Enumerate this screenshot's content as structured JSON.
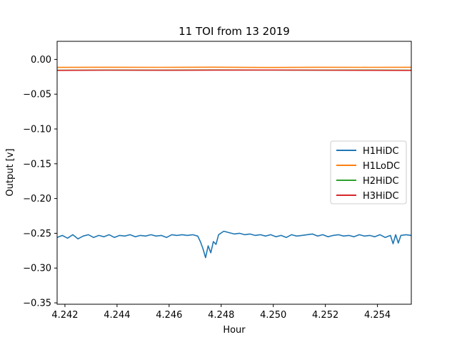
{
  "chart_data": {
    "type": "line",
    "title": "11 TOI from 13 2019",
    "xlabel": "Hour",
    "ylabel": "Output [v]",
    "xlim": [
      4.2417,
      4.2553
    ],
    "ylim": [
      -0.352,
      0.026
    ],
    "xticks": [
      4.242,
      4.244,
      4.246,
      4.248,
      4.25,
      4.252,
      4.254
    ],
    "xtick_labels": [
      "4.242",
      "4.244",
      "4.246",
      "4.248",
      "4.250",
      "4.252",
      "4.254"
    ],
    "yticks": [
      0.0,
      -0.05,
      -0.1,
      -0.15,
      -0.2,
      -0.25,
      -0.3,
      -0.35
    ],
    "ytick_labels": [
      "0.00",
      "−0.05",
      "−0.10",
      "−0.15",
      "−0.20",
      "−0.25",
      "−0.30",
      "−0.35"
    ],
    "grid": false,
    "legend_position": "center-right",
    "series": [
      {
        "name": "H1HiDC",
        "color": "#1f77b4",
        "x": [
          4.2417,
          4.2419,
          4.2421,
          4.2423,
          4.2425,
          4.2427,
          4.2429,
          4.2431,
          4.2433,
          4.2435,
          4.2437,
          4.2439,
          4.2441,
          4.2443,
          4.2445,
          4.2447,
          4.2449,
          4.2451,
          4.2453,
          4.2455,
          4.2457,
          4.2459,
          4.2461,
          4.2463,
          4.2465,
          4.2467,
          4.2469,
          4.2471,
          4.2472,
          4.2473,
          4.2474,
          4.2475,
          4.2476,
          4.2477,
          4.2478,
          4.2479,
          4.2481,
          4.2483,
          4.2485,
          4.2487,
          4.2489,
          4.2491,
          4.2493,
          4.2495,
          4.2497,
          4.2499,
          4.2501,
          4.2503,
          4.2505,
          4.2507,
          4.2509,
          4.2511,
          4.2513,
          4.2515,
          4.2517,
          4.2519,
          4.2521,
          4.2523,
          4.2525,
          4.2527,
          4.2529,
          4.2531,
          4.2533,
          4.2535,
          4.2537,
          4.2539,
          4.2541,
          4.2543,
          4.2545,
          4.2546,
          4.2547,
          4.2548,
          4.2549,
          4.2551,
          4.2553
        ],
        "y": [
          -0.256,
          -0.253,
          -0.257,
          -0.252,
          -0.258,
          -0.254,
          -0.252,
          -0.256,
          -0.253,
          -0.255,
          -0.252,
          -0.256,
          -0.253,
          -0.254,
          -0.252,
          -0.255,
          -0.253,
          -0.254,
          -0.252,
          -0.254,
          -0.253,
          -0.256,
          -0.252,
          -0.253,
          -0.252,
          -0.253,
          -0.252,
          -0.254,
          -0.262,
          -0.272,
          -0.285,
          -0.268,
          -0.278,
          -0.262,
          -0.266,
          -0.252,
          -0.247,
          -0.249,
          -0.251,
          -0.25,
          -0.252,
          -0.251,
          -0.253,
          -0.252,
          -0.254,
          -0.252,
          -0.255,
          -0.253,
          -0.256,
          -0.252,
          -0.254,
          -0.253,
          -0.252,
          -0.251,
          -0.254,
          -0.252,
          -0.255,
          -0.253,
          -0.252,
          -0.254,
          -0.253,
          -0.255,
          -0.252,
          -0.254,
          -0.253,
          -0.255,
          -0.252,
          -0.256,
          -0.253,
          -0.265,
          -0.252,
          -0.264,
          -0.253,
          -0.252,
          -0.253
        ]
      },
      {
        "name": "H1LoDC",
        "color": "#ff7f0e",
        "x": [
          4.2417,
          4.2437,
          4.2457,
          4.2477,
          4.2497,
          4.2517,
          4.2537,
          4.2553
        ],
        "y": [
          -0.0115,
          -0.0113,
          -0.0114,
          -0.0112,
          -0.0116,
          -0.0113,
          -0.0114,
          -0.0113
        ]
      },
      {
        "name": "H2HiDC",
        "color": "#2ca02c",
        "x": [
          4.2417,
          4.2437,
          4.2457,
          4.2477,
          4.2497,
          4.2517,
          4.2537,
          4.2553
        ],
        "y": [
          -0.0155,
          -0.0153,
          -0.0154,
          -0.0152,
          -0.0153,
          -0.0154,
          -0.0153,
          -0.0155
        ]
      },
      {
        "name": "H3HiDC",
        "color": "#d62728",
        "x": [
          4.2417,
          4.2437,
          4.2457,
          4.2477,
          4.2497,
          4.2517,
          4.2537,
          4.2553
        ],
        "y": [
          -0.0158,
          -0.0155,
          -0.0156,
          -0.0154,
          -0.0153,
          -0.0155,
          -0.0157,
          -0.0158
        ]
      }
    ]
  }
}
